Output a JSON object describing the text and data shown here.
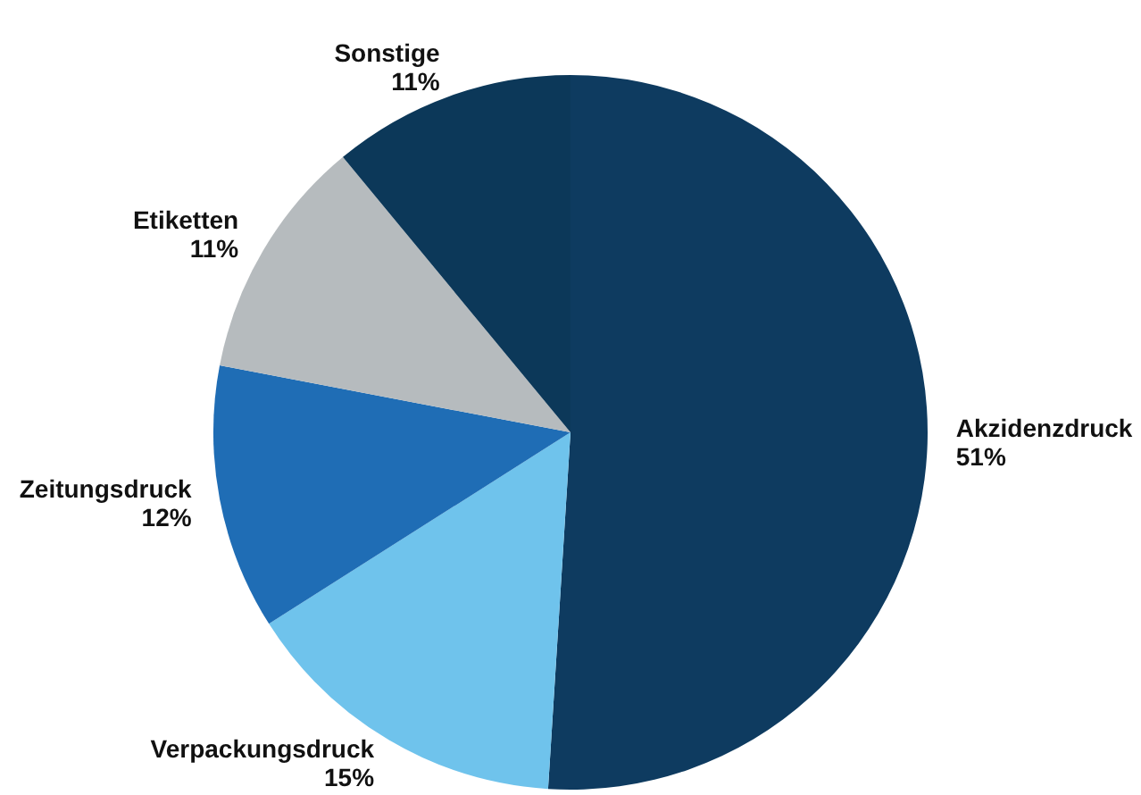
{
  "chart_data": {
    "type": "pie",
    "categories": [
      "Akzidenzdruck",
      "Verpackungsdruck",
      "Zeitungsdruck",
      "Etiketten",
      "Sonstige"
    ],
    "values": [
      51,
      15,
      12,
      11,
      11
    ],
    "colors": [
      "#0e3b60",
      "#6fc3ec",
      "#1f6db5",
      "#b6bbbe",
      "#0c3859"
    ],
    "value_labels": [
      "51%",
      "15%",
      "12%",
      "11%",
      "11%"
    ]
  }
}
